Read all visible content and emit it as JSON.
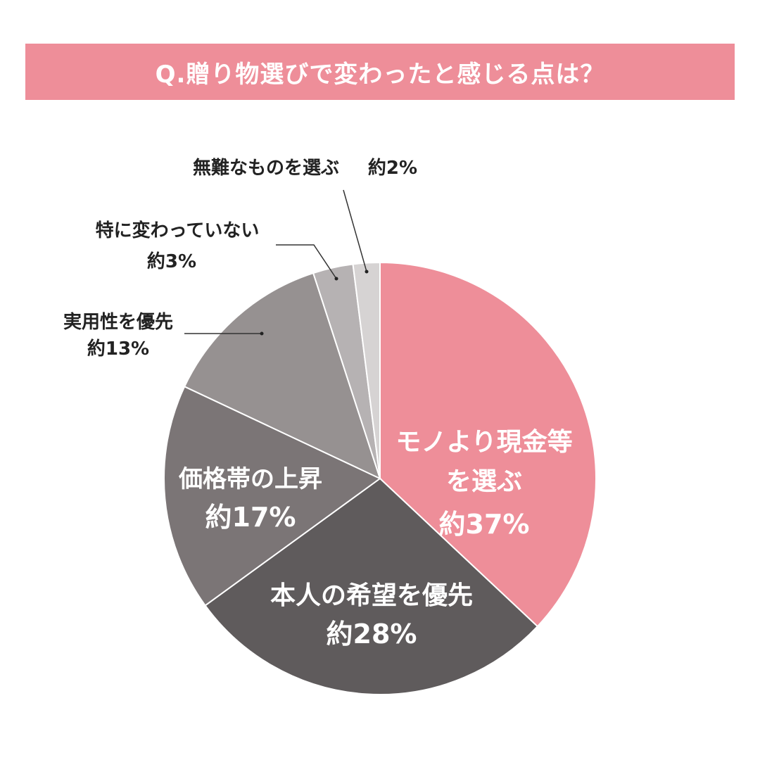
{
  "header": {
    "title": "Q.贈り物選びで変わったと感じる点は？"
  },
  "chart_data": {
    "type": "pie",
    "title": "Q.贈り物選びで変わったと感じる点は？",
    "start_angle_deg": 0,
    "direction": "clockwise",
    "slices": [
      {
        "label_lines": [
          "モノより現金等",
          "を選ぶ"
        ],
        "value_label": "約37%",
        "value": 37,
        "color": "#ee8e99"
      },
      {
        "label_lines": [
          "本人の希望を優先"
        ],
        "value_label": "約28%",
        "value": 28,
        "color": "#5f5b5c"
      },
      {
        "label_lines": [
          "価格帯の上昇"
        ],
        "value_label": "約17%",
        "value": 17,
        "color": "#7b7576"
      },
      {
        "label_lines": [
          "実用性を優先"
        ],
        "value_label": "約13%",
        "value": 13,
        "color": "#969191"
      },
      {
        "label_lines": [
          "特に変わっていない"
        ],
        "value_label": "約3%",
        "value": 3,
        "color": "#b6b2b3"
      },
      {
        "label_lines": [
          "無難なものを選ぶ"
        ],
        "value_label": "約2%",
        "value": 2,
        "color": "#d6d3d3"
      }
    ]
  }
}
